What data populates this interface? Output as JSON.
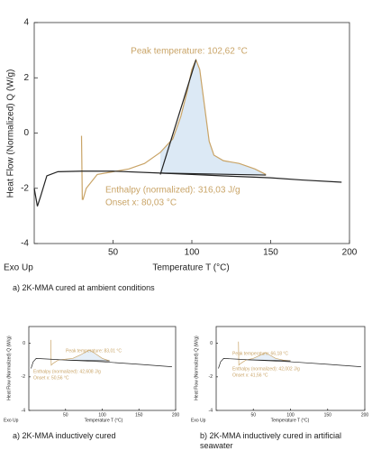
{
  "chart_data": [
    {
      "type": "line",
      "caption": "a)  2K-MMA cured at ambient conditions",
      "corner_note": "Exo Up",
      "xlabel": "Temperature T (°C)",
      "ylabel": "Heat Flow (Normalized) Q (W/g)",
      "annotations": [
        "Peak temperature: 102,62 °C",
        "Enthalpy (normalized): 316,03 J/g",
        "Onset x: 80,03 °C"
      ],
      "annotation_color": "#c9a467",
      "xlim": [
        0,
        200
      ],
      "xticks": [
        50,
        100,
        150,
        200
      ],
      "ylim": [
        -4,
        4
      ],
      "yticks": [
        -4,
        -2,
        0,
        2,
        4
      ],
      "grid": false,
      "series": [
        {
          "color": "#c9a467",
          "fill": "#dce9f5",
          "x": [
            30,
            30.5,
            31,
            33,
            40,
            50,
            60,
            70,
            80,
            88,
            93,
            97,
            100,
            102.6,
            105,
            108,
            111,
            114,
            120,
            130,
            140,
            147
          ],
          "values": [
            -0.1,
            -2.4,
            -2.4,
            -2.0,
            -1.5,
            -1.4,
            -1.3,
            -1.1,
            -0.7,
            -0.2,
            0.6,
            1.5,
            2.3,
            2.65,
            2.3,
            1.0,
            -0.3,
            -0.8,
            -1.0,
            -1.1,
            -1.3,
            -1.5
          ]
        },
        {
          "color": "#222222",
          "x": [
            0,
            2,
            4,
            8,
            15,
            30,
            50,
            80,
            100,
            120,
            150,
            170,
            195
          ],
          "values": [
            -2.0,
            -2.65,
            -2.3,
            -1.55,
            -1.4,
            -1.38,
            -1.38,
            -1.45,
            -1.5,
            -1.55,
            -1.62,
            -1.7,
            -1.78
          ]
        },
        {
          "color": "#222222",
          "x": [
            80,
            102.6
          ],
          "values": [
            -1.5,
            2.65
          ]
        },
        {
          "color": "#222222",
          "x": [
            80,
            147
          ],
          "values": [
            -1.45,
            -1.52
          ]
        }
      ]
    },
    {
      "type": "line",
      "caption": "a)  2K-MMA inductively cured",
      "corner_note": "Exo Up",
      "xlabel": "Temperature T (°C)",
      "ylabel": "Heat Flow (Normalized) Q (W/g)",
      "annotations": [
        "Peak temperature: 83,01 °C",
        "Enthalpy (normalized): 42,608 J/g",
        "Onset x: 50,56 °C"
      ],
      "annotation_color": "#c9a467",
      "xlim": [
        0,
        200
      ],
      "xticks": [
        50,
        100,
        150,
        200
      ],
      "ylim": [
        -4,
        1
      ],
      "yticks": [
        -4,
        -2,
        0
      ],
      "grid": false,
      "series": [
        {
          "color": "#c9a467",
          "fill": "#e6eff8",
          "x": [
            30,
            30.5,
            33,
            40,
            50,
            60,
            70,
            78,
            83,
            90,
            100,
            110
          ],
          "values": [
            0.2,
            -1.3,
            -1.2,
            -1.0,
            -0.95,
            -0.9,
            -0.7,
            -0.5,
            -0.4,
            -0.6,
            -0.9,
            -1.05
          ]
        },
        {
          "color": "#222222",
          "x": [
            3,
            6,
            10,
            30,
            50,
            100,
            150,
            195
          ],
          "values": [
            -1.5,
            -1.1,
            -0.9,
            -0.95,
            -1.0,
            -1.1,
            -1.25,
            -1.4
          ]
        },
        {
          "color": "#222222",
          "x": [
            50,
            110
          ],
          "values": [
            -1.0,
            -1.05
          ]
        }
      ]
    },
    {
      "type": "line",
      "caption": "b)  2K-MMA inductively cured in artificial seawater",
      "corner_note": "Exo Up",
      "xlabel": "Temperature T (°C)",
      "ylabel": "Heat Flow (Normalized) Q (W/g)",
      "annotations": [
        "Peak temperature: 66,18 °C",
        "Enthalpy (normalized): 42,002 J/g",
        "Onset x: 41,56 °C"
      ],
      "annotation_color": "#c9a467",
      "xlim": [
        0,
        200
      ],
      "xticks": [
        50,
        100,
        150,
        200
      ],
      "ylim": [
        -4,
        1
      ],
      "yticks": [
        -4,
        -2,
        0
      ],
      "grid": false,
      "series": [
        {
          "color": "#c9a467",
          "fill": "#e6eff8",
          "x": [
            30,
            30.5,
            33,
            40,
            50,
            60,
            66,
            72,
            80,
            90,
            100
          ],
          "values": [
            0.1,
            -1.3,
            -1.2,
            -1.0,
            -0.9,
            -0.7,
            -0.55,
            -0.7,
            -0.9,
            -1.0,
            -1.05
          ]
        },
        {
          "color": "#222222",
          "x": [
            3,
            6,
            10,
            30,
            50,
            100,
            150,
            195
          ],
          "values": [
            -1.5,
            -1.1,
            -0.9,
            -0.95,
            -1.0,
            -1.1,
            -1.25,
            -1.4
          ]
        },
        {
          "color": "#222222",
          "x": [
            42,
            100
          ],
          "values": [
            -0.98,
            -1.05
          ]
        }
      ]
    }
  ]
}
